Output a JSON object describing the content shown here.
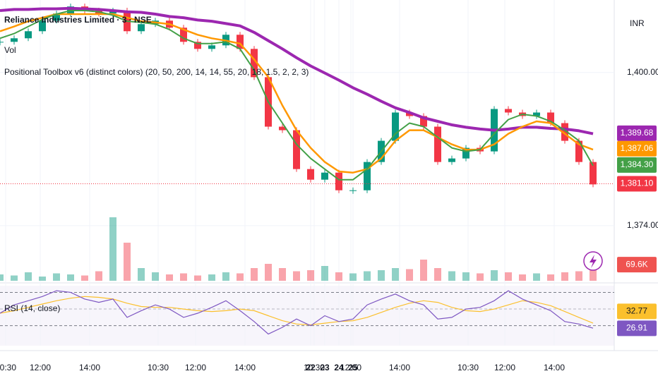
{
  "header": {
    "title": "Reliance Industries Limited · 3 · NSE",
    "volume_label": "Vol",
    "indicator": "Positional Toolbox v6 (distinct colors) (20, 50, 200, 14, 14, 55, 20, 18, 1.5, 2, 2, 3)",
    "rsi_label": "RSI (14, close)",
    "currency": "INR"
  },
  "chart_data": {
    "type": "candlestick",
    "xlim": [
      0,
      43.5
    ],
    "xticks": [
      {
        "value": 0.4,
        "label": "10:30"
      },
      {
        "value": 2.85,
        "label": "12:00"
      },
      {
        "value": 6.35,
        "label": "14:00"
      },
      22,
      {
        "value": 11.2,
        "label": "10:30"
      },
      {
        "value": 13.85,
        "label": "12:00"
      },
      {
        "value": 17.35,
        "label": "14:00"
      },
      23,
      {
        "value": 22.25,
        "label": "10:30"
      },
      {
        "value": 24.85,
        "label": "12:00"
      },
      {
        "value": 28.3,
        "label": "14:00"
      },
      24,
      {
        "value": 33.15,
        "label": "10:30"
      },
      {
        "value": 35.75,
        "label": "12:00"
      },
      {
        "value": 39.25,
        "label": "14:00"
      },
      25
    ],
    "ylim": [
      1364.4,
      1412.3
    ],
    "yticks": [
      {
        "value": 1400,
        "label": "1,400.00"
      },
      {
        "value": 1374,
        "label": "1,374.00"
      }
    ],
    "up_color": "#089981",
    "down_color": "#f23645",
    "close": [
      1405.2,
      1405.8,
      1407.0,
      1408.8,
      1410.0,
      1411.2,
      1410.5,
      1410.0,
      1410.5,
      1407.0,
      1408.2,
      1408.8,
      1407.6,
      1405.2,
      1404.0,
      1404.6,
      1406.4,
      1404.0,
      1399.2,
      1390.8,
      1390.2,
      1383.6,
      1381.8,
      1383.0,
      1380.0,
      1380.0,
      1384.8,
      1388.4,
      1393.2,
      1392.6,
      1390.8,
      1384.8,
      1385.4,
      1387.2,
      1386.6,
      1393.8,
      1393.2,
      1392.6,
      1393.2,
      1391.4,
      1388.4,
      1384.8,
      1381.0
    ],
    "series": [
      {
        "color": "#9c27b0",
        "width": 4,
        "tag": {
          "value": 1389.68,
          "label": "1,389.68"
        },
        "values": [
          1410.5,
          1410.7,
          1410.7,
          1410.8,
          1410.8,
          1410.9,
          1410.8,
          1410.7,
          1410.5,
          1410.3,
          1410.2,
          1409.9,
          1409.5,
          1409.3,
          1408.9,
          1408.7,
          1408.3,
          1407.9,
          1406.8,
          1405.4,
          1404.0,
          1402.5,
          1401.1,
          1399.9,
          1398.7,
          1397.4,
          1396.3,
          1395.1,
          1394.0,
          1393.2,
          1392.3,
          1391.7,
          1391.1,
          1390.7,
          1390.4,
          1390.2,
          1390.4,
          1390.7,
          1390.7,
          1390.5,
          1390.4,
          1390.1,
          1389.6
        ]
      },
      {
        "color": "#ff9800",
        "width": 2.5,
        "tag": {
          "value": 1387.06,
          "label": "1,387.06"
        },
        "values": [
          1407.0,
          1407.8,
          1408.7,
          1409.3,
          1409.9,
          1409.9,
          1409.9,
          1409.9,
          1409.9,
          1409.3,
          1408.7,
          1408.5,
          1408.2,
          1407.3,
          1406.4,
          1405.8,
          1405.4,
          1404.9,
          1402.2,
          1399.2,
          1394.4,
          1390.2,
          1387.2,
          1384.8,
          1383.2,
          1383.0,
          1383.6,
          1385.4,
          1388.4,
          1390.2,
          1390.2,
          1389.0,
          1387.8,
          1386.9,
          1386.9,
          1387.8,
          1389.6,
          1390.8,
          1391.7,
          1391.4,
          1389.6,
          1387.8,
          1386.9
        ]
      },
      {
        "color": "#43a047",
        "width": 2,
        "tag": {
          "value": 1384.3,
          "label": "1,384.30"
        },
        "values": [
          1405.8,
          1406.6,
          1407.8,
          1409.0,
          1409.9,
          1410.5,
          1410.5,
          1410.3,
          1409.7,
          1408.7,
          1408.5,
          1408.2,
          1407.3,
          1405.8,
          1404.9,
          1404.9,
          1405.2,
          1404.0,
          1400.4,
          1395.0,
          1391.4,
          1387.8,
          1385.4,
          1383.6,
          1381.8,
          1381.8,
          1383.6,
          1386.6,
          1389.6,
          1391.4,
          1390.8,
          1389.0,
          1387.2,
          1386.6,
          1386.9,
          1389.6,
          1392.0,
          1392.9,
          1392.6,
          1391.7,
          1390.2,
          1388.4,
          1384.2
        ]
      }
    ],
    "last_price": {
      "value": 1381.1,
      "label": "1,381.10",
      "color": "#f23645"
    }
  },
  "volume": {
    "type": "bar",
    "ylim": [
      0,
      400000
    ],
    "values": [
      30000,
      25000,
      40000,
      20000,
      35000,
      30000,
      25000,
      45000,
      300000,
      180000,
      60000,
      40000,
      30000,
      35000,
      25000,
      30000,
      40000,
      35000,
      60000,
      80000,
      60000,
      45000,
      50000,
      70000,
      40000,
      35000,
      45000,
      50000,
      60000,
      55000,
      100000,
      60000,
      45000,
      40000,
      35000,
      50000,
      40000,
      30000,
      35000,
      30000,
      40000,
      45000,
      69600
    ],
    "last": {
      "value": 69600,
      "label": "69.6K",
      "color": "#ef5350"
    }
  },
  "rsi": {
    "type": "line",
    "ylim": [
      6,
      78
    ],
    "yticks": [
      30,
      50,
      70
    ],
    "series": [
      {
        "color": "#fbc02d",
        "tag": {
          "value": 32.77,
          "label": "32.77"
        },
        "values": [
          45,
          48,
          52,
          56,
          60,
          63,
          65,
          64,
          62,
          57,
          53,
          52,
          52,
          50,
          48,
          47,
          48,
          50,
          48,
          42,
          36,
          32,
          31,
          33,
          35,
          36,
          40,
          46,
          52,
          57,
          60,
          58,
          52,
          48,
          47,
          50,
          55,
          60,
          58,
          54,
          47,
          40,
          33
        ]
      },
      {
        "color": "#7e57c2",
        "tag": {
          "value": 26.91,
          "label": "26.91"
        },
        "values": [
          45,
          55,
          60,
          65,
          72,
          70,
          62,
          58,
          62,
          40,
          48,
          55,
          50,
          40,
          45,
          52,
          60,
          48,
          35,
          20,
          28,
          38,
          30,
          42,
          35,
          38,
          55,
          62,
          68,
          60,
          55,
          38,
          40,
          50,
          52,
          60,
          72,
          62,
          55,
          48,
          35,
          32,
          27
        ]
      }
    ]
  }
}
